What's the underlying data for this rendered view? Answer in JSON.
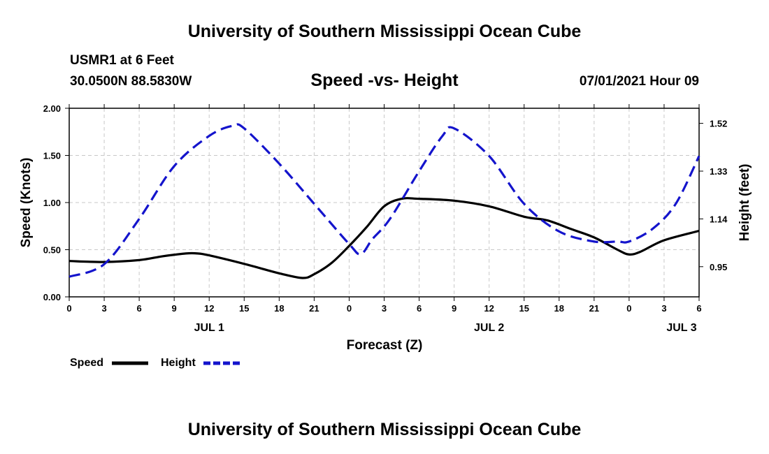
{
  "page": {
    "top_title": "University of Southern Mississippi Ocean Cube",
    "bottom_title": "University of Southern Mississippi Ocean Cube",
    "station": "USMR1 at 6 Feet",
    "coords": "30.0500N  88.5830W",
    "datetime": "07/01/2021 Hour 09"
  },
  "chart_data": {
    "type": "line",
    "title": "Speed -vs- Height",
    "xlabel": "Forecast (Z)",
    "ylabel_left": "Speed (Knots)",
    "ylabel_right": "Height (feet)",
    "x_hours_range": [
      0,
      54
    ],
    "ylim_left": [
      0,
      2
    ],
    "ylim_right": [
      0.83,
      1.58
    ],
    "x_ticks": [
      {
        "hour": 0,
        "label": "0"
      },
      {
        "hour": 3,
        "label": "3"
      },
      {
        "hour": 6,
        "label": "6"
      },
      {
        "hour": 9,
        "label": "9"
      },
      {
        "hour": 12,
        "label": "12"
      },
      {
        "hour": 15,
        "label": "15"
      },
      {
        "hour": 18,
        "label": "18"
      },
      {
        "hour": 21,
        "label": "21"
      },
      {
        "hour": 24,
        "label": "0"
      },
      {
        "hour": 27,
        "label": "3"
      },
      {
        "hour": 30,
        "label": "6"
      },
      {
        "hour": 33,
        "label": "9"
      },
      {
        "hour": 36,
        "label": "12"
      },
      {
        "hour": 39,
        "label": "15"
      },
      {
        "hour": 42,
        "label": "18"
      },
      {
        "hour": 45,
        "label": "21"
      },
      {
        "hour": 48,
        "label": "0"
      },
      {
        "hour": 51,
        "label": "3"
      },
      {
        "hour": 54,
        "label": "6"
      }
    ],
    "day_labels": [
      {
        "hour": 12,
        "label": "JUL 1"
      },
      {
        "hour": 36,
        "label": "JUL 2"
      },
      {
        "hour": 52.5,
        "label": "JUL 3"
      }
    ],
    "y_ticks_left": [
      "0.00",
      "0.50",
      "1.00",
      "1.50",
      "2.00"
    ],
    "y_ticks_right": [
      "0.95",
      "1.14",
      "1.33",
      "1.52"
    ],
    "legend": [
      {
        "name": "Speed",
        "color": "#000000",
        "dash": "solid"
      },
      {
        "name": "Height",
        "color": "#1414cc",
        "dash": "dashed"
      }
    ],
    "series": [
      {
        "name": "Speed",
        "axis": "left",
        "color": "#000000",
        "points": [
          [
            0,
            0.38
          ],
          [
            3,
            0.37
          ],
          [
            6,
            0.39
          ],
          [
            8,
            0.43
          ],
          [
            10,
            0.46
          ],
          [
            11,
            0.46
          ],
          [
            12,
            0.44
          ],
          [
            15,
            0.35
          ],
          [
            18,
            0.25
          ],
          [
            20,
            0.2
          ],
          [
            21,
            0.24
          ],
          [
            22.5,
            0.36
          ],
          [
            24,
            0.54
          ],
          [
            25.5,
            0.74
          ],
          [
            27,
            0.96
          ],
          [
            28.5,
            1.04
          ],
          [
            30,
            1.04
          ],
          [
            33,
            1.02
          ],
          [
            36,
            0.96
          ],
          [
            39,
            0.85
          ],
          [
            41,
            0.81
          ],
          [
            43,
            0.72
          ],
          [
            45,
            0.63
          ],
          [
            47,
            0.5
          ],
          [
            48,
            0.45
          ],
          [
            49,
            0.48
          ],
          [
            51,
            0.6
          ],
          [
            54,
            0.7
          ]
        ]
      },
      {
        "name": "Height",
        "axis": "right",
        "color": "#1414cc",
        "points": [
          [
            0,
            0.91
          ],
          [
            3,
            0.96
          ],
          [
            6,
            1.14
          ],
          [
            9,
            1.35
          ],
          [
            12,
            1.47
          ],
          [
            14,
            1.51
          ],
          [
            15,
            1.5
          ],
          [
            18,
            1.36
          ],
          [
            21,
            1.2
          ],
          [
            24,
            1.04
          ],
          [
            25,
            1.0
          ],
          [
            26,
            1.06
          ],
          [
            27.5,
            1.14
          ],
          [
            30,
            1.33
          ],
          [
            32,
            1.47
          ],
          [
            33,
            1.5
          ],
          [
            36,
            1.39
          ],
          [
            39,
            1.2
          ],
          [
            42,
            1.09
          ],
          [
            45,
            1.05
          ],
          [
            47,
            1.05
          ],
          [
            48,
            1.05
          ],
          [
            50,
            1.1
          ],
          [
            52,
            1.2
          ],
          [
            54,
            1.39
          ]
        ]
      }
    ]
  }
}
